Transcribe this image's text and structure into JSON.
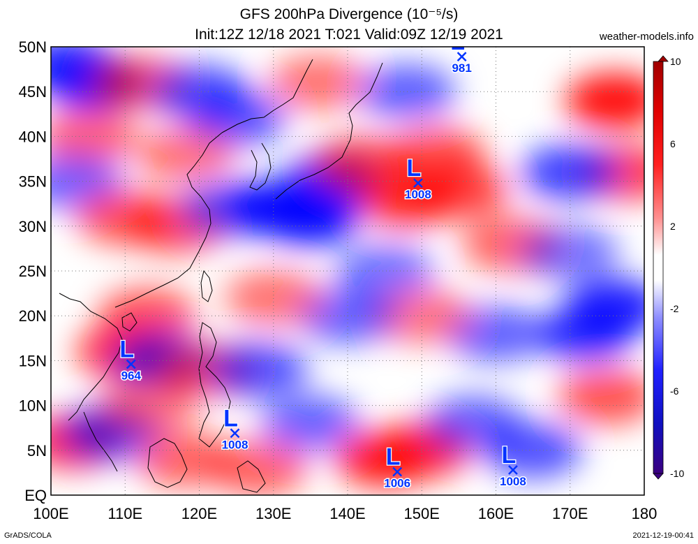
{
  "title": {
    "line1": "GFS 200hPa Divergence (10⁻⁵/s)",
    "line2": "Init:12Z 12/18 2021 T:021 Valid:09Z 12/19 2021"
  },
  "site": "weather-models.info",
  "footer": {
    "left": "GrADS/COLA",
    "right": "2021-12-19-00:41"
  },
  "map": {
    "lon_range": [
      100,
      180
    ],
    "lat_range": [
      0,
      50
    ],
    "lon_labels": [
      "100E",
      "110E",
      "120E",
      "130E",
      "140E",
      "150E",
      "160E",
      "170E",
      "180"
    ],
    "lat_labels": [
      "EQ",
      "5N",
      "10N",
      "15N",
      "20N",
      "25N",
      "30N",
      "35N",
      "40N",
      "45N",
      "50N"
    ],
    "gridlines": "dotted",
    "colors": {
      "divergence": "#ff0000",
      "convergence": "#0000ff",
      "neutral": "#ffffff",
      "coast": "#000000",
      "low_marker": "#0033ff"
    }
  },
  "colorbar": {
    "labels": [
      "10",
      "6",
      "2",
      "-2",
      "-6",
      "-10"
    ],
    "range": [
      -10,
      10
    ],
    "top_color": "#a00000",
    "bottom_color": "#3a0080"
  },
  "lows": [
    {
      "symbol": "L",
      "pressure": "981",
      "lon": 155.4,
      "lat": 48.9
    },
    {
      "symbol": "L",
      "pressure": "1008",
      "lon": 149.5,
      "lat": 34.8
    },
    {
      "symbol": "L",
      "pressure": "964",
      "lon": 110.8,
      "lat": 14.6
    },
    {
      "symbol": "L",
      "pressure": "1008",
      "lon": 124.8,
      "lat": 6.9
    },
    {
      "symbol": "L",
      "pressure": "1006",
      "lon": 146.7,
      "lat": 2.6
    },
    {
      "symbol": "L",
      "pressure": "1008",
      "lon": 162.3,
      "lat": 2.8
    }
  ],
  "fields": [
    {
      "lon": 102,
      "lat": 48,
      "v": -7
    },
    {
      "lon": 106,
      "lat": 46,
      "v": -8
    },
    {
      "lon": 112,
      "lat": 46,
      "v": 4
    },
    {
      "lon": 120,
      "lat": 45,
      "v": -5
    },
    {
      "lon": 125,
      "lat": 42,
      "v": -5
    },
    {
      "lon": 105,
      "lat": 40,
      "v": 4
    },
    {
      "lon": 118,
      "lat": 38,
      "v": 3
    },
    {
      "lon": 103,
      "lat": 35,
      "v": -4
    },
    {
      "lon": 110,
      "lat": 31,
      "v": 5
    },
    {
      "lon": 117,
      "lat": 30,
      "v": 5
    },
    {
      "lon": 124,
      "lat": 32,
      "v": -4
    },
    {
      "lon": 130,
      "lat": 32,
      "v": -10
    },
    {
      "lon": 135,
      "lat": 31,
      "v": -9
    },
    {
      "lon": 138,
      "lat": 35,
      "v": -8
    },
    {
      "lon": 136,
      "lat": 46,
      "v": 3
    },
    {
      "lon": 148,
      "lat": 45,
      "v": -4
    },
    {
      "lon": 142,
      "lat": 37,
      "v": 5
    },
    {
      "lon": 148,
      "lat": 33,
      "v": 7
    },
    {
      "lon": 155,
      "lat": 34,
      "v": 6
    },
    {
      "lon": 152,
      "lat": 38,
      "v": 5
    },
    {
      "lon": 162,
      "lat": 28,
      "v": 4
    },
    {
      "lon": 176,
      "lat": 44,
      "v": 9
    },
    {
      "lon": 178,
      "lat": 36,
      "v": 6
    },
    {
      "lon": 170,
      "lat": 36,
      "v": -6
    },
    {
      "lon": 172,
      "lat": 18,
      "v": -7
    },
    {
      "lon": 176,
      "lat": 21,
      "v": -8
    },
    {
      "lon": 160,
      "lat": 18,
      "v": -4
    },
    {
      "lon": 150,
      "lat": 20,
      "v": 3
    },
    {
      "lon": 140,
      "lat": 20,
      "v": -4
    },
    {
      "lon": 130,
      "lat": 22,
      "v": 3
    },
    {
      "lon": 113,
      "lat": 20,
      "v": 5
    },
    {
      "lon": 110,
      "lat": 16,
      "v": 7
    },
    {
      "lon": 115,
      "lat": 15,
      "v": -5
    },
    {
      "lon": 121,
      "lat": 14,
      "v": 4
    },
    {
      "lon": 128,
      "lat": 14,
      "v": -5
    },
    {
      "lon": 103,
      "lat": 6,
      "v": 7
    },
    {
      "lon": 108,
      "lat": 7,
      "v": -5
    },
    {
      "lon": 113,
      "lat": 10,
      "v": 3
    },
    {
      "lon": 118,
      "lat": 4,
      "v": 4
    },
    {
      "lon": 128,
      "lat": 3,
      "v": 4
    },
    {
      "lon": 135,
      "lat": 8,
      "v": -4
    },
    {
      "lon": 145,
      "lat": 4,
      "v": 8
    },
    {
      "lon": 150,
      "lat": 5,
      "v": 7
    },
    {
      "lon": 157,
      "lat": 8,
      "v": -4
    },
    {
      "lon": 165,
      "lat": 5,
      "v": -5
    },
    {
      "lon": 175,
      "lat": 11,
      "v": 5
    },
    {
      "lon": 170,
      "lat": 27,
      "v": -3
    },
    {
      "lon": 145,
      "lat": 25,
      "v": -3
    }
  ]
}
